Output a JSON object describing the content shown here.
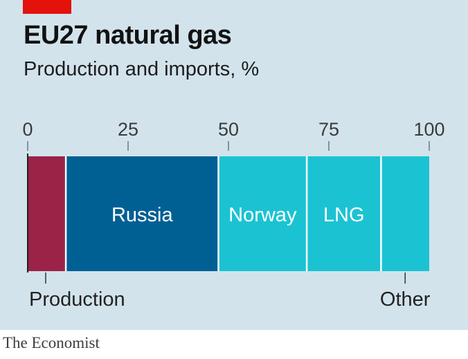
{
  "header": {
    "title": "EU27 natural gas",
    "subtitle": "Production and imports, %",
    "tag_color": "#e3120b"
  },
  "footer": {
    "source": "The Economist"
  },
  "chart_data": {
    "type": "bar",
    "orientation": "horizontal-stacked",
    "axis_ticks": [
      "0",
      "25",
      "50",
      "75",
      "100"
    ],
    "xlim": [
      0,
      100
    ],
    "grid": false,
    "segments": [
      {
        "label": "Production",
        "value": 9.5,
        "color": "#9b2348",
        "label_position": "below"
      },
      {
        "label": "Russia",
        "value": 38.0,
        "color": "#006094",
        "label_position": "inside"
      },
      {
        "label": "Norway",
        "value": 22.0,
        "color": "#1bc3d2",
        "label_position": "inside"
      },
      {
        "label": "LNG",
        "value": 18.5,
        "color": "#1bc3d2",
        "label_position": "inside"
      },
      {
        "label": "Other",
        "value": 12.0,
        "color": "#1bc3d2",
        "label_position": "below"
      }
    ]
  }
}
